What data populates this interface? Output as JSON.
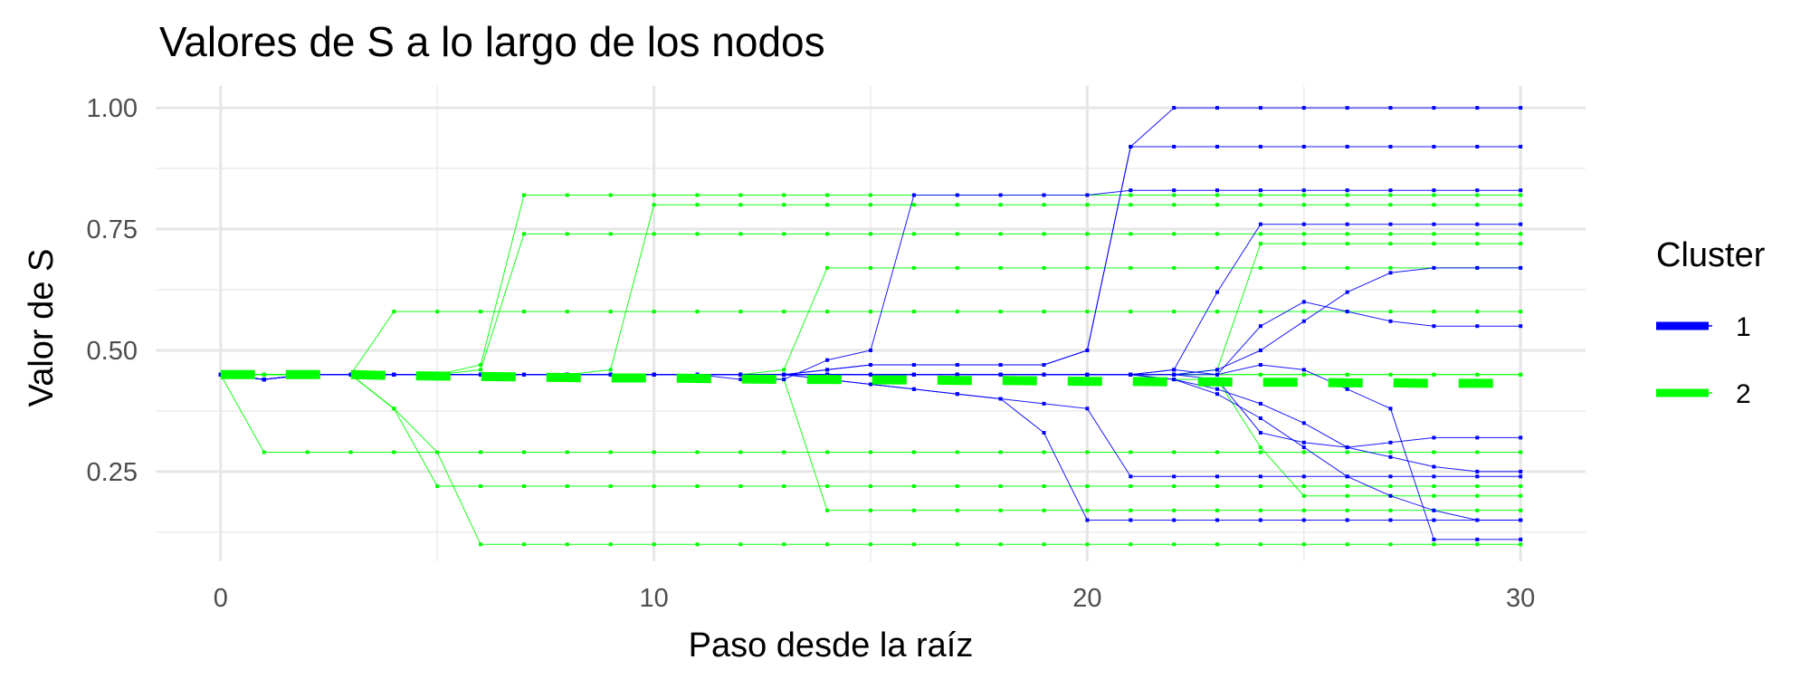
{
  "chart_data": {
    "type": "line",
    "title": "Valores de S a lo largo de los nodos",
    "xlabel": "Paso desde la raíz",
    "ylabel": "Valor de S",
    "xlim": [
      -1.5,
      31.5
    ],
    "ylim": [
      0.065,
      1.045
    ],
    "x_ticks": [
      0,
      10,
      20,
      30
    ],
    "x_tick_labels": [
      "0",
      "10",
      "20",
      "30"
    ],
    "y_ticks": [
      0.25,
      0.5,
      0.75,
      1.0
    ],
    "y_tick_labels": [
      "0.25",
      "0.50",
      "0.75",
      "1.00"
    ],
    "grid": true,
    "legend": {
      "title": "Cluster",
      "position": "right",
      "items": [
        {
          "label": "1",
          "color": "#0000ff"
        },
        {
          "label": "2",
          "color": "#00ff00"
        }
      ]
    },
    "series": [
      {
        "name": "1",
        "color": "#0000ff",
        "values": [
          0.45,
          0.44,
          0.45,
          0.45,
          0.45,
          0.45,
          0.45,
          0.45,
          0.45,
          0.45,
          0.45,
          0.45,
          0.44,
          0.44,
          0.48,
          0.5,
          0.82,
          0.82,
          0.82,
          0.82,
          0.82,
          0.83,
          0.83,
          0.83,
          0.83,
          0.83,
          0.83,
          0.83,
          0.83,
          0.83,
          0.83
        ]
      },
      {
        "name": "1",
        "color": "#0000ff",
        "values": [
          0.45,
          0.44,
          0.45,
          0.45,
          0.45,
          0.45,
          0.45,
          0.45,
          0.45,
          0.45,
          0.45,
          0.45,
          0.45,
          0.45,
          0.46,
          0.47,
          0.47,
          0.47,
          0.47,
          0.47,
          0.5,
          0.92,
          1.0,
          1.0,
          1.0,
          1.0,
          1.0,
          1.0,
          1.0,
          1.0,
          1.0
        ]
      },
      {
        "name": "1",
        "color": "#0000ff",
        "values": [
          0.45,
          0.44,
          0.45,
          0.45,
          0.45,
          0.45,
          0.45,
          0.45,
          0.45,
          0.45,
          0.45,
          0.45,
          0.45,
          0.45,
          0.46,
          0.47,
          0.47,
          0.47,
          0.47,
          0.47,
          0.5,
          0.92,
          0.92,
          0.92,
          0.92,
          0.92,
          0.92,
          0.92,
          0.92,
          0.92,
          0.92
        ]
      },
      {
        "name": "1",
        "color": "#0000ff",
        "values": [
          0.45,
          0.44,
          0.45,
          0.45,
          0.45,
          0.45,
          0.45,
          0.45,
          0.45,
          0.45,
          0.45,
          0.45,
          0.45,
          0.45,
          0.44,
          0.43,
          0.42,
          0.41,
          0.4,
          0.39,
          0.38,
          0.24,
          0.24,
          0.24,
          0.24,
          0.24,
          0.24,
          0.24,
          0.24,
          0.24,
          0.24
        ]
      },
      {
        "name": "1",
        "color": "#0000ff",
        "values": [
          0.45,
          0.44,
          0.45,
          0.45,
          0.45,
          0.45,
          0.45,
          0.45,
          0.45,
          0.45,
          0.45,
          0.45,
          0.45,
          0.45,
          0.44,
          0.43,
          0.42,
          0.41,
          0.4,
          0.33,
          0.15,
          0.15,
          0.15,
          0.15,
          0.15,
          0.15,
          0.15,
          0.15,
          0.15,
          0.15,
          0.15
        ]
      },
      {
        "name": "1",
        "color": "#0000ff",
        "values": [
          0.45,
          0.44,
          0.45,
          0.45,
          0.45,
          0.45,
          0.45,
          0.45,
          0.45,
          0.45,
          0.45,
          0.45,
          0.45,
          0.45,
          0.45,
          0.45,
          0.45,
          0.45,
          0.45,
          0.45,
          0.45,
          0.45,
          0.46,
          0.45,
          0.47,
          0.46,
          0.42,
          0.38,
          0.11,
          0.11,
          0.11
        ]
      },
      {
        "name": "1",
        "color": "#0000ff",
        "values": [
          0.45,
          0.44,
          0.45,
          0.45,
          0.45,
          0.45,
          0.45,
          0.45,
          0.45,
          0.45,
          0.45,
          0.45,
          0.45,
          0.45,
          0.45,
          0.45,
          0.45,
          0.45,
          0.45,
          0.45,
          0.45,
          0.45,
          0.46,
          0.62,
          0.76,
          0.76,
          0.76,
          0.76,
          0.76,
          0.76,
          0.76
        ]
      },
      {
        "name": "1",
        "color": "#0000ff",
        "values": [
          0.45,
          0.44,
          0.45,
          0.45,
          0.45,
          0.45,
          0.45,
          0.45,
          0.45,
          0.45,
          0.45,
          0.45,
          0.45,
          0.45,
          0.45,
          0.45,
          0.45,
          0.45,
          0.45,
          0.45,
          0.45,
          0.45,
          0.44,
          0.42,
          0.39,
          0.35,
          0.3,
          0.28,
          0.26,
          0.25,
          0.25
        ]
      },
      {
        "name": "1",
        "color": "#0000ff",
        "values": [
          0.45,
          0.44,
          0.45,
          0.45,
          0.45,
          0.45,
          0.45,
          0.45,
          0.45,
          0.45,
          0.45,
          0.45,
          0.45,
          0.45,
          0.45,
          0.45,
          0.45,
          0.45,
          0.45,
          0.45,
          0.45,
          0.45,
          0.45,
          0.46,
          0.5,
          0.56,
          0.62,
          0.66,
          0.67,
          0.67,
          0.67
        ]
      },
      {
        "name": "1",
        "color": "#0000ff",
        "values": [
          0.45,
          0.44,
          0.45,
          0.45,
          0.45,
          0.45,
          0.45,
          0.45,
          0.45,
          0.45,
          0.45,
          0.45,
          0.45,
          0.45,
          0.45,
          0.45,
          0.45,
          0.45,
          0.45,
          0.45,
          0.45,
          0.45,
          0.44,
          0.41,
          0.36,
          0.3,
          0.24,
          0.2,
          0.17,
          0.15,
          0.15
        ]
      },
      {
        "name": "1",
        "color": "#0000ff",
        "values": [
          0.45,
          0.44,
          0.45,
          0.45,
          0.45,
          0.45,
          0.45,
          0.45,
          0.45,
          0.45,
          0.45,
          0.45,
          0.45,
          0.45,
          0.45,
          0.45,
          0.45,
          0.45,
          0.45,
          0.45,
          0.45,
          0.45,
          0.45,
          0.45,
          0.55,
          0.6,
          0.58,
          0.56,
          0.55,
          0.55,
          0.55
        ]
      },
      {
        "name": "1",
        "color": "#0000ff",
        "values": [
          0.45,
          0.44,
          0.45,
          0.45,
          0.45,
          0.45,
          0.45,
          0.45,
          0.45,
          0.45,
          0.45,
          0.45,
          0.45,
          0.45,
          0.45,
          0.45,
          0.45,
          0.45,
          0.45,
          0.45,
          0.45,
          0.45,
          0.45,
          0.44,
          0.33,
          0.31,
          0.3,
          0.31,
          0.32,
          0.32,
          0.32
        ]
      },
      {
        "name": "2",
        "color": "#00ff00",
        "values": [
          0.45,
          0.45,
          0.45,
          0.45,
          0.45,
          0.45,
          0.47,
          0.82,
          0.82,
          0.82,
          0.82,
          0.82,
          0.82,
          0.82,
          0.82,
          0.82,
          0.82,
          0.82,
          0.82,
          0.82,
          0.82,
          0.82,
          0.82,
          0.82,
          0.82,
          0.82,
          0.82,
          0.82,
          0.82,
          0.82,
          0.82
        ]
      },
      {
        "name": "2",
        "color": "#00ff00",
        "values": [
          0.45,
          0.45,
          0.45,
          0.45,
          0.45,
          0.45,
          0.46,
          0.74,
          0.74,
          0.74,
          0.74,
          0.74,
          0.74,
          0.74,
          0.74,
          0.74,
          0.74,
          0.74,
          0.74,
          0.74,
          0.74,
          0.74,
          0.74,
          0.74,
          0.74,
          0.74,
          0.74,
          0.74,
          0.74,
          0.74,
          0.74
        ]
      },
      {
        "name": "2",
        "color": "#00ff00",
        "values": [
          0.45,
          0.45,
          0.45,
          0.45,
          0.45,
          0.45,
          0.45,
          0.45,
          0.45,
          0.46,
          0.8,
          0.8,
          0.8,
          0.8,
          0.8,
          0.8,
          0.8,
          0.8,
          0.8,
          0.8,
          0.8,
          0.8,
          0.8,
          0.8,
          0.8,
          0.8,
          0.8,
          0.8,
          0.8,
          0.8,
          0.8
        ]
      },
      {
        "name": "2",
        "color": "#00ff00",
        "values": [
          0.45,
          0.29,
          0.29,
          0.29,
          0.29,
          0.29,
          0.29,
          0.29,
          0.29,
          0.29,
          0.29,
          0.29,
          0.29,
          0.29,
          0.29,
          0.29,
          0.29,
          0.29,
          0.29,
          0.29,
          0.29,
          0.29,
          0.29,
          0.29,
          0.29,
          0.29,
          0.29,
          0.29,
          0.29,
          0.29,
          0.29
        ]
      },
      {
        "name": "2",
        "color": "#00ff00",
        "values": [
          0.45,
          0.45,
          0.45,
          0.45,
          0.38,
          0.29,
          0.1,
          0.1,
          0.1,
          0.1,
          0.1,
          0.1,
          0.1,
          0.1,
          0.1,
          0.1,
          0.1,
          0.1,
          0.1,
          0.1,
          0.1,
          0.1,
          0.1,
          0.1,
          0.1,
          0.1,
          0.1,
          0.1,
          0.1,
          0.1,
          0.1
        ]
      },
      {
        "name": "2",
        "color": "#00ff00",
        "values": [
          0.45,
          0.45,
          0.45,
          0.45,
          0.38,
          0.22,
          0.22,
          0.22,
          0.22,
          0.22,
          0.22,
          0.22,
          0.22,
          0.22,
          0.22,
          0.22,
          0.22,
          0.22,
          0.22,
          0.22,
          0.22,
          0.22,
          0.22,
          0.22,
          0.22,
          0.22,
          0.22,
          0.22,
          0.22,
          0.22,
          0.22
        ]
      },
      {
        "name": "2",
        "color": "#00ff00",
        "values": [
          0.45,
          0.45,
          0.45,
          0.45,
          0.58,
          0.58,
          0.58,
          0.58,
          0.58,
          0.58,
          0.58,
          0.58,
          0.58,
          0.58,
          0.58,
          0.58,
          0.58,
          0.58,
          0.58,
          0.58,
          0.58,
          0.58,
          0.58,
          0.58,
          0.58,
          0.58,
          0.58,
          0.58,
          0.58,
          0.58,
          0.58
        ]
      },
      {
        "name": "2",
        "color": "#00ff00",
        "values": [
          0.45,
          0.45,
          0.45,
          0.45,
          0.45,
          0.45,
          0.45,
          0.45,
          0.45,
          0.45,
          0.45,
          0.45,
          0.45,
          0.45,
          0.45,
          0.45,
          0.45,
          0.45,
          0.45,
          0.45,
          0.45,
          0.45,
          0.45,
          0.45,
          0.45,
          0.45,
          0.45,
          0.45,
          0.45,
          0.45,
          0.45
        ]
      },
      {
        "name": "2",
        "color": "#00ff00",
        "values": [
          0.45,
          0.45,
          0.45,
          0.45,
          0.45,
          0.45,
          0.45,
          0.45,
          0.45,
          0.45,
          0.45,
          0.45,
          0.45,
          0.46,
          0.67,
          0.67,
          0.67,
          0.67,
          0.67,
          0.67,
          0.67,
          0.67,
          0.67,
          0.67,
          0.67,
          0.67,
          0.67,
          0.67,
          0.67,
          0.67,
          0.67
        ]
      },
      {
        "name": "2",
        "color": "#00ff00",
        "values": [
          0.45,
          0.45,
          0.45,
          0.45,
          0.45,
          0.45,
          0.45,
          0.45,
          0.45,
          0.45,
          0.45,
          0.45,
          0.45,
          0.44,
          0.17,
          0.17,
          0.17,
          0.17,
          0.17,
          0.17,
          0.17,
          0.17,
          0.17,
          0.17,
          0.17,
          0.17,
          0.17,
          0.17,
          0.17,
          0.17,
          0.17
        ]
      },
      {
        "name": "2",
        "color": "#00ff00",
        "values": [
          0.45,
          0.45,
          0.45,
          0.45,
          0.45,
          0.45,
          0.45,
          0.45,
          0.45,
          0.45,
          0.45,
          0.45,
          0.45,
          0.45,
          0.45,
          0.45,
          0.45,
          0.45,
          0.45,
          0.45,
          0.45,
          0.45,
          0.45,
          0.46,
          0.72,
          0.72,
          0.72,
          0.72,
          0.72,
          0.72,
          0.72
        ]
      },
      {
        "name": "2",
        "color": "#00ff00",
        "values": [
          0.45,
          0.45,
          0.45,
          0.45,
          0.45,
          0.45,
          0.45,
          0.45,
          0.45,
          0.45,
          0.45,
          0.45,
          0.45,
          0.45,
          0.45,
          0.45,
          0.45,
          0.45,
          0.45,
          0.45,
          0.45,
          0.45,
          0.44,
          0.44,
          0.3,
          0.2,
          0.2,
          0.2,
          0.2,
          0.2,
          0.2
        ]
      },
      {
        "name": "2",
        "color": "#00ff00",
        "values": [
          0.45,
          0.45,
          0.45,
          0.45,
          0.45,
          0.45,
          0.45,
          0.45,
          0.45,
          0.45,
          0.45,
          0.45,
          0.45,
          0.45,
          0.45,
          0.45,
          0.45,
          0.45,
          0.45,
          0.45,
          0.45,
          0.45,
          0.45,
          0.45,
          0.45,
          0.45,
          0.45,
          0.45,
          0.45,
          0.45,
          0.45
        ]
      }
    ],
    "mean_series": {
      "name": "2",
      "color": "#00ff00",
      "values": [
        0.45,
        0.45,
        0.45,
        0.45,
        0.448,
        0.447,
        0.446,
        0.445,
        0.444,
        0.443,
        0.443,
        0.442,
        0.441,
        0.44,
        0.44,
        0.439,
        0.439,
        0.438,
        0.438,
        0.437,
        0.436,
        0.436,
        0.435,
        0.435,
        0.434,
        0.434,
        0.433,
        0.433,
        0.432,
        0.432,
        0.432
      ]
    }
  }
}
